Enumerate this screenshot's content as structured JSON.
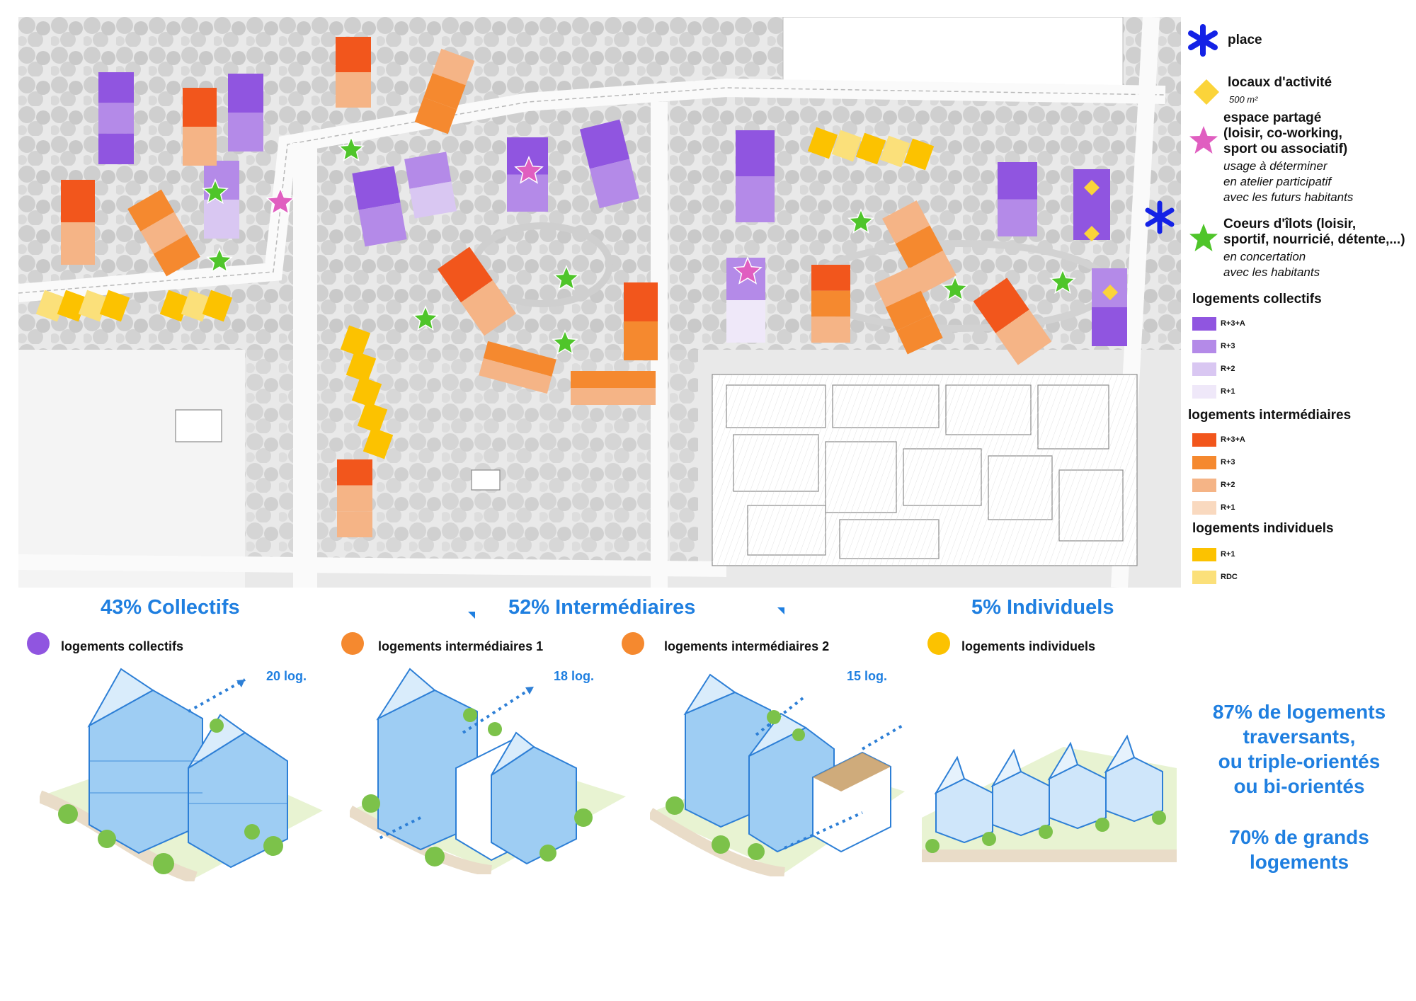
{
  "colors": {
    "collectif_R3A": "#9055e0",
    "collectif_R3": "#b48ae8",
    "collectif_R2": "#d9c7f2",
    "collectif_R1": "#efe8f9",
    "inter_R3A": "#f2561c",
    "inter_R3": "#f5892f",
    "inter_R2": "#f5b486",
    "inter_R1": "#f9d9bf",
    "indiv_R1": "#fcc200",
    "indiv_RDC": "#fbe07a",
    "place": "#1422e6",
    "locaux": "#fbd43a",
    "espace_partage": "#e05ec0",
    "coeurs": "#4fc52a",
    "accent": "#1f7fe0"
  },
  "legend": {
    "place": {
      "icon": "blue-asterisk-icon",
      "title": "place"
    },
    "locaux": {
      "icon": "yellow-diamond-icon",
      "title": "locaux d'activité",
      "sub": "500 m²"
    },
    "espace": {
      "icon": "pink-star-icon",
      "title_lines": [
        "espace partagé",
        "(loisir, co-working,",
        " sport ou associatif)"
      ],
      "sub_lines": [
        "usage à déterminer",
        "en atelier participatif",
        "avec les futurs habitants"
      ]
    },
    "coeurs": {
      "icon": "green-star-icon",
      "title_lines": [
        "Coeurs d'îlots (loisir,",
        "sportif, nourricié, détente,...)"
      ],
      "sub_lines": [
        "en concertation",
        "avec les habitants"
      ]
    },
    "collectifs": {
      "title": "logements collectifs",
      "items": [
        "R+3+A",
        "R+3",
        "R+2",
        "R+1"
      ]
    },
    "intermediaires": {
      "title": "logements intermédiaires",
      "items": [
        "R+3+A",
        "R+3",
        "R+2",
        "R+1"
      ]
    },
    "individuels": {
      "title": "logements individuels",
      "items": [
        "R+1",
        "RDC"
      ]
    }
  },
  "summary": {
    "collectifs_pct": "43% Collectifs",
    "intermediaires_pct": "52% Intermédiaires",
    "individuels_pct": "5% Individuels"
  },
  "categories": [
    {
      "label": "logements collectifs",
      "color": "#9055e0"
    },
    {
      "label": "logements intermédiaires 1",
      "color": "#f5892f"
    },
    {
      "label": "logements intermédiaires 2",
      "color": "#f5892f"
    },
    {
      "label": "logements individuels",
      "color": "#fcc200"
    }
  ],
  "counts": [
    "20 log.",
    "18 log.",
    "15 log."
  ],
  "stats": {
    "traversants": "87% de logements\ntraversants,\nou triple-orientés\nou bi-orientés",
    "grands": "70% de grands\nlogements"
  }
}
